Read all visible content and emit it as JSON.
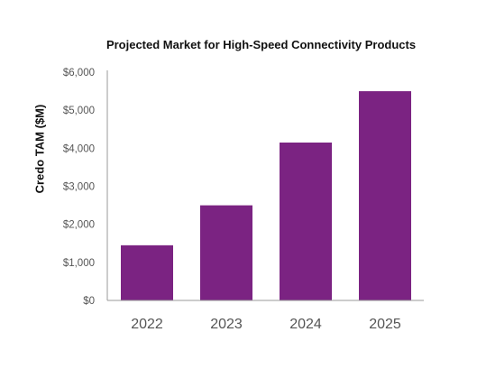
{
  "chart_data": {
    "type": "bar",
    "title": "Projected Market for High-Speed Connectivity Products",
    "ylabel": "Credo TAM ($M)",
    "xlabel": "",
    "categories": [
      "2022",
      "2023",
      "2024",
      "2025"
    ],
    "values": [
      1450,
      2500,
      4150,
      5500
    ],
    "ylim": [
      0,
      6000
    ],
    "yticks": [
      "$0",
      "$1,000",
      "$2,000",
      "$3,000",
      "$4,000",
      "$5,000",
      "$6,000"
    ],
    "ytick_values": [
      0,
      1000,
      2000,
      3000,
      4000,
      5000,
      6000
    ],
    "bar_color": "#7b2382",
    "axis_color": "#999999",
    "grid": false,
    "legend": "none"
  }
}
